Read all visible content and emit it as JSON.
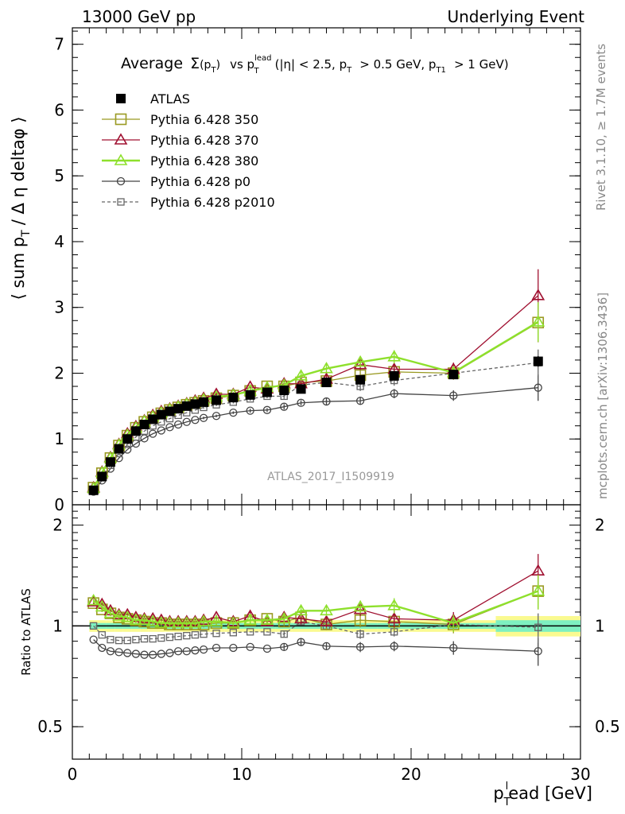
{
  "header": {
    "left": "13000 GeV pp",
    "right": "Underlying Event"
  },
  "side_labels": {
    "rivet": "Rivet 3.1.10, ≥ 1.7M events",
    "mcplots": "mcplots.cern.ch [arXiv:1306.3436]"
  },
  "analysis_id": "ATLAS_2017_I1509919",
  "colors": {
    "ATLAS": "#000000",
    "Pythia 6.428 350": "#9a9a22",
    "Pythia 6.428 370": "#a01030",
    "Pythia 6.428 380": "#8ee02c",
    "Pythia 6.428 p0": "#444444",
    "Pythia 6.428 p2010": "#666666",
    "band_inner": "#7ef0c0",
    "band_outer": "#fafa90"
  },
  "chart_data": [
    {
      "type": "line",
      "title": "Average Σ(pT) vs pT lead (|η| < 2.5, pT > 0.5 GeV, pT1 > 1 GeV)",
      "title_parts": {
        "average": "Average",
        "sigma": "Σ",
        "pT": "(p",
        "pT_sub": "T",
        "pT_close": ")",
        "vs": "vs p",
        "lead_sup": "lead",
        "lead_sub": "T",
        "cuts_a": "(|η| < 2.5, p",
        "cuts_a_sub": "T",
        "cuts_b": "> 0.5 GeV, p",
        "cuts_b_sub": "T1",
        "cuts_c": "> 1 GeV)"
      },
      "ylabel": "⟨ sum pT / Δη deltaφ ⟩",
      "ylabel_parts": {
        "a": "⟨ sum p",
        "a_sub": "T",
        "b": "/ Δ η deltaφ ⟩"
      },
      "xlim": [
        0,
        30
      ],
      "ylim": [
        0,
        7.25
      ],
      "yticks": [
        0,
        1,
        2,
        3,
        4,
        5,
        6,
        7
      ],
      "x": [
        1.25,
        1.75,
        2.25,
        2.75,
        3.25,
        3.75,
        4.25,
        4.75,
        5.25,
        5.75,
        6.25,
        6.75,
        7.25,
        7.75,
        8.5,
        9.5,
        10.5,
        11.5,
        12.5,
        13.5,
        15.0,
        17.0,
        19.0,
        22.5,
        27.5
      ],
      "series": [
        {
          "name": "ATLAS",
          "marker": "filled-square",
          "values": [
            0.22,
            0.43,
            0.65,
            0.85,
            1.0,
            1.12,
            1.22,
            1.3,
            1.37,
            1.42,
            1.46,
            1.5,
            1.53,
            1.56,
            1.59,
            1.63,
            1.67,
            1.71,
            1.74,
            1.76,
            1.86,
            1.9,
            1.96,
            1.98,
            2.18
          ],
          "errors": [
            0.01,
            0.01,
            0.01,
            0.01,
            0.01,
            0.01,
            0.01,
            0.01,
            0.01,
            0.01,
            0.01,
            0.01,
            0.01,
            0.01,
            0.02,
            0.02,
            0.02,
            0.03,
            0.03,
            0.04,
            0.04,
            0.05,
            0.06,
            0.06,
            0.08
          ]
        },
        {
          "name": "Pythia 6.428 350",
          "marker": "open-square",
          "line": "solid",
          "values": [
            0.26,
            0.48,
            0.71,
            0.9,
            1.05,
            1.17,
            1.26,
            1.33,
            1.39,
            1.44,
            1.48,
            1.52,
            1.55,
            1.58,
            1.62,
            1.66,
            1.73,
            1.8,
            1.8,
            1.86,
            1.88,
            1.97,
            2.02,
            2.0,
            2.77
          ],
          "errors": [
            0.01,
            0.01,
            0.01,
            0.01,
            0.01,
            0.01,
            0.01,
            0.01,
            0.02,
            0.02,
            0.02,
            0.02,
            0.02,
            0.02,
            0.03,
            0.03,
            0.04,
            0.05,
            0.05,
            0.06,
            0.07,
            0.08,
            0.1,
            0.1,
            0.3
          ]
        },
        {
          "name": "Pythia 6.428 370",
          "marker": "open-triangle",
          "line": "solid",
          "values": [
            0.26,
            0.5,
            0.72,
            0.92,
            1.08,
            1.19,
            1.28,
            1.36,
            1.42,
            1.46,
            1.5,
            1.54,
            1.58,
            1.62,
            1.68,
            1.68,
            1.79,
            1.76,
            1.84,
            1.84,
            1.91,
            2.13,
            2.06,
            2.06,
            3.18
          ],
          "errors": [
            0.01,
            0.01,
            0.01,
            0.01,
            0.01,
            0.01,
            0.01,
            0.01,
            0.02,
            0.02,
            0.02,
            0.02,
            0.02,
            0.02,
            0.03,
            0.03,
            0.04,
            0.05,
            0.05,
            0.06,
            0.07,
            0.08,
            0.1,
            0.1,
            0.4
          ]
        },
        {
          "name": "Pythia 6.428 380",
          "marker": "open-triangle",
          "line": "solid",
          "values": [
            0.25,
            0.49,
            0.71,
            0.91,
            1.06,
            1.17,
            1.27,
            1.34,
            1.4,
            1.45,
            1.49,
            1.53,
            1.56,
            1.6,
            1.64,
            1.67,
            1.73,
            1.78,
            1.82,
            1.96,
            2.07,
            2.17,
            2.25,
            2.01,
            2.78
          ],
          "errors": [
            0.01,
            0.01,
            0.01,
            0.01,
            0.01,
            0.01,
            0.01,
            0.01,
            0.02,
            0.02,
            0.02,
            0.02,
            0.02,
            0.02,
            0.03,
            0.03,
            0.04,
            0.05,
            0.05,
            0.06,
            0.07,
            0.08,
            0.1,
            0.1,
            0.3
          ]
        },
        {
          "name": "Pythia 6.428 p0",
          "marker": "open-circle",
          "line": "solid",
          "values": [
            0.2,
            0.37,
            0.55,
            0.71,
            0.84,
            0.93,
            1.01,
            1.08,
            1.13,
            1.18,
            1.22,
            1.26,
            1.29,
            1.32,
            1.35,
            1.4,
            1.43,
            1.44,
            1.49,
            1.55,
            1.57,
            1.58,
            1.69,
            1.66,
            1.78
          ],
          "errors": [
            0.01,
            0.01,
            0.01,
            0.01,
            0.01,
            0.01,
            0.01,
            0.01,
            0.01,
            0.01,
            0.01,
            0.01,
            0.01,
            0.02,
            0.02,
            0.02,
            0.03,
            0.03,
            0.04,
            0.04,
            0.05,
            0.06,
            0.07,
            0.08,
            0.2
          ]
        },
        {
          "name": "Pythia 6.428 p2010",
          "marker": "open-square-small",
          "line": "dashed",
          "values": [
            0.22,
            0.41,
            0.6,
            0.78,
            0.92,
            1.03,
            1.12,
            1.2,
            1.26,
            1.31,
            1.36,
            1.4,
            1.44,
            1.48,
            1.52,
            1.56,
            1.61,
            1.65,
            1.65,
            1.82,
            1.86,
            1.8,
            1.89,
            2.0,
            2.16
          ],
          "errors": [
            0.01,
            0.01,
            0.01,
            0.01,
            0.01,
            0.01,
            0.01,
            0.01,
            0.01,
            0.01,
            0.01,
            0.01,
            0.01,
            0.02,
            0.02,
            0.02,
            0.03,
            0.03,
            0.04,
            0.05,
            0.06,
            0.07,
            0.08,
            0.09,
            0.2
          ]
        }
      ],
      "legend": "top-left",
      "grid": false
    },
    {
      "type": "line",
      "ylabel": "Ratio to ATLAS",
      "xlabel": "pTlead [GeV]",
      "xlabel_parts": {
        "p": "p",
        "sub": "T",
        "sup": "l",
        "rest": "ead [GeV]"
      },
      "xlim": [
        0,
        30
      ],
      "ylim": [
        0.4,
        2.3
      ],
      "yscale": "log",
      "yticks": [
        0.5,
        1,
        2
      ],
      "ytick_labels": [
        "0.5",
        "1",
        "2"
      ],
      "xticks": [
        0,
        10,
        20,
        30
      ],
      "xtick_labels": [
        "0",
        "10",
        "20",
        "30"
      ],
      "x": [
        1.25,
        1.75,
        2.25,
        2.75,
        3.25,
        3.75,
        4.25,
        4.75,
        5.25,
        5.75,
        6.25,
        6.75,
        7.25,
        7.75,
        8.5,
        9.5,
        10.5,
        11.5,
        12.5,
        13.5,
        15.0,
        17.0,
        19.0,
        22.5,
        27.5
      ],
      "reference_band_stat": [
        0.02,
        0.02,
        0.02,
        0.02,
        0.02,
        0.02,
        0.02,
        0.02,
        0.02,
        0.02,
        0.02,
        0.02,
        0.02,
        0.02,
        0.02,
        0.02,
        0.02,
        0.02,
        0.02,
        0.02,
        0.02,
        0.02,
        0.02,
        0.02,
        0.04
      ],
      "reference_band_total": [
        0.04,
        0.04,
        0.04,
        0.04,
        0.04,
        0.04,
        0.04,
        0.04,
        0.04,
        0.04,
        0.04,
        0.04,
        0.04,
        0.04,
        0.04,
        0.04,
        0.04,
        0.04,
        0.04,
        0.04,
        0.04,
        0.04,
        0.04,
        0.04,
        0.07
      ],
      "series": [
        {
          "name": "Pythia 6.428 350",
          "values": [
            1.17,
            1.12,
            1.09,
            1.06,
            1.05,
            1.04,
            1.03,
            1.02,
            1.02,
            1.01,
            1.01,
            1.01,
            1.01,
            1.01,
            1.02,
            1.02,
            1.04,
            1.05,
            1.03,
            1.06,
            1.01,
            1.04,
            1.03,
            1.01,
            1.27
          ],
          "errors": [
            0.02,
            0.02,
            0.02,
            0.02,
            0.02,
            0.02,
            0.02,
            0.02,
            0.02,
            0.02,
            0.02,
            0.02,
            0.02,
            0.02,
            0.02,
            0.02,
            0.03,
            0.03,
            0.03,
            0.04,
            0.04,
            0.05,
            0.06,
            0.06,
            0.15
          ]
        },
        {
          "name": "Pythia 6.428 370",
          "values": [
            1.18,
            1.16,
            1.11,
            1.08,
            1.08,
            1.06,
            1.05,
            1.05,
            1.04,
            1.03,
            1.03,
            1.03,
            1.03,
            1.04,
            1.06,
            1.03,
            1.07,
            1.03,
            1.06,
            1.05,
            1.03,
            1.12,
            1.05,
            1.04,
            1.46
          ],
          "errors": [
            0.02,
            0.02,
            0.02,
            0.02,
            0.02,
            0.02,
            0.02,
            0.02,
            0.02,
            0.02,
            0.02,
            0.02,
            0.02,
            0.02,
            0.02,
            0.02,
            0.03,
            0.03,
            0.03,
            0.04,
            0.04,
            0.05,
            0.06,
            0.06,
            0.18
          ]
        },
        {
          "name": "Pythia 6.428 380",
          "values": [
            1.19,
            1.14,
            1.09,
            1.07,
            1.06,
            1.04,
            1.04,
            1.03,
            1.02,
            1.02,
            1.02,
            1.02,
            1.02,
            1.03,
            1.03,
            1.02,
            1.04,
            1.04,
            1.05,
            1.11,
            1.11,
            1.14,
            1.15,
            1.02,
            1.27
          ],
          "errors": [
            0.02,
            0.02,
            0.02,
            0.02,
            0.02,
            0.02,
            0.02,
            0.02,
            0.02,
            0.02,
            0.02,
            0.02,
            0.02,
            0.02,
            0.02,
            0.02,
            0.03,
            0.03,
            0.03,
            0.04,
            0.04,
            0.05,
            0.06,
            0.06,
            0.15
          ]
        },
        {
          "name": "Pythia 6.428 p0",
          "values": [
            0.91,
            0.86,
            0.84,
            0.835,
            0.83,
            0.825,
            0.82,
            0.82,
            0.825,
            0.83,
            0.84,
            0.84,
            0.845,
            0.85,
            0.86,
            0.86,
            0.865,
            0.855,
            0.865,
            0.895,
            0.87,
            0.865,
            0.87,
            0.86,
            0.84
          ],
          "errors": [
            0.01,
            0.01,
            0.01,
            0.01,
            0.01,
            0.01,
            0.01,
            0.01,
            0.01,
            0.01,
            0.01,
            0.01,
            0.01,
            0.01,
            0.01,
            0.01,
            0.01,
            0.01,
            0.02,
            0.02,
            0.02,
            0.03,
            0.03,
            0.04,
            0.08
          ]
        },
        {
          "name": "Pythia 6.428 p2010",
          "values": [
            1.0,
            0.94,
            0.91,
            0.905,
            0.905,
            0.91,
            0.915,
            0.915,
            0.92,
            0.925,
            0.93,
            0.935,
            0.94,
            0.945,
            0.95,
            0.955,
            0.96,
            0.96,
            0.945,
            1.03,
            1.0,
            0.945,
            0.96,
            1.01,
            0.99
          ],
          "errors": [
            0.01,
            0.01,
            0.01,
            0.01,
            0.01,
            0.01,
            0.01,
            0.01,
            0.01,
            0.01,
            0.01,
            0.01,
            0.01,
            0.01,
            0.01,
            0.01,
            0.01,
            0.01,
            0.02,
            0.02,
            0.02,
            0.03,
            0.03,
            0.04,
            0.1
          ]
        }
      ]
    }
  ]
}
